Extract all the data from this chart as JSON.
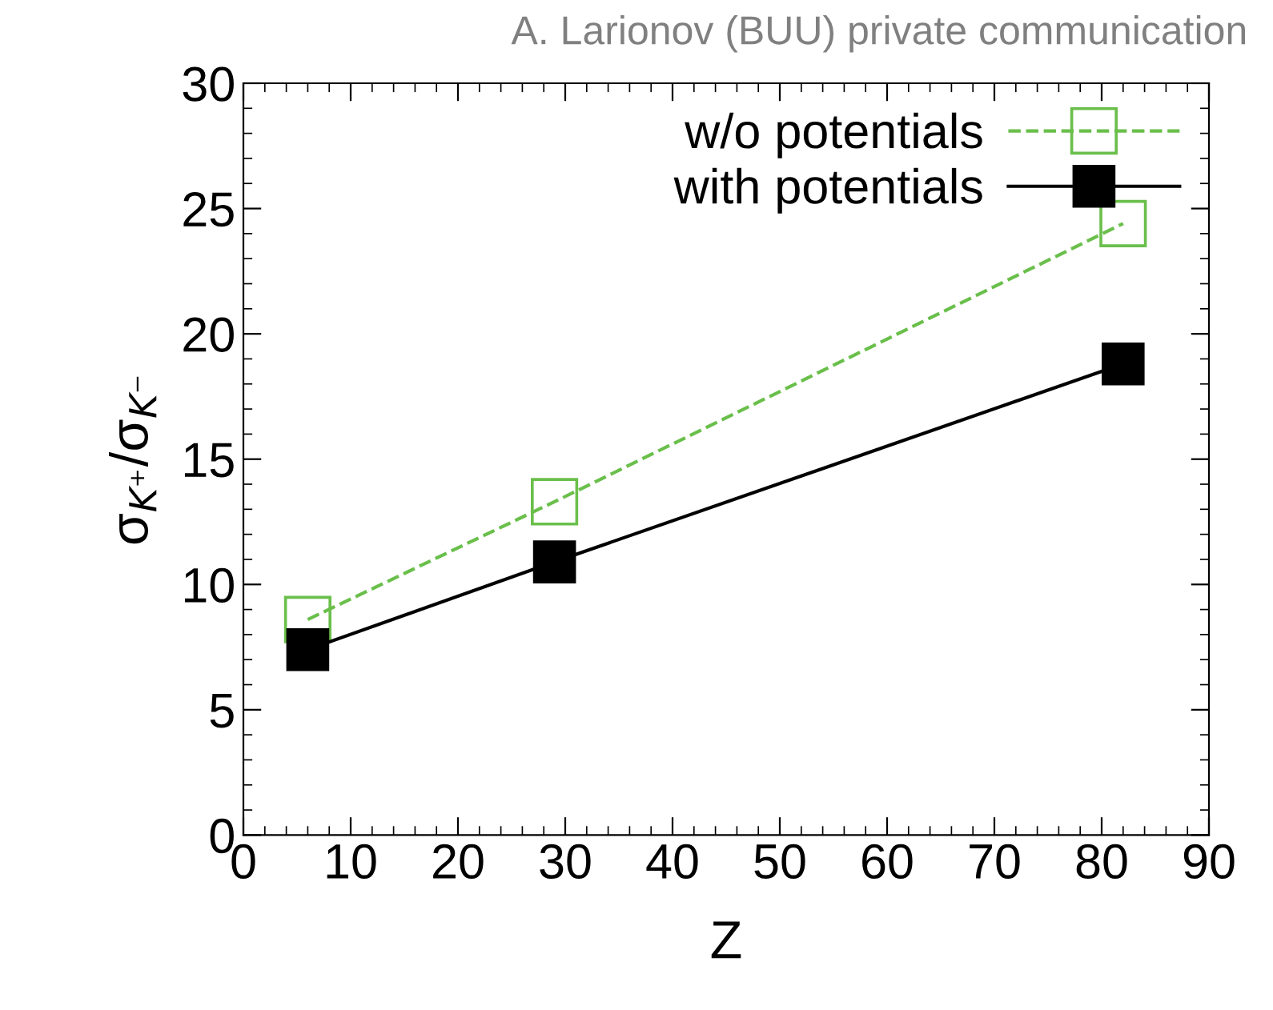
{
  "chart_data": {
    "type": "line",
    "xlabel": "Z",
    "ylabel": "σ$_{K⁺}$/σ$_{K⁻}$",
    "annotations": [
      "A. Larionov (BUU) private communication"
    ],
    "x": [
      6,
      29,
      82
    ],
    "series": [
      {
        "name": "w/o potentials",
        "color": "#6abf4b",
        "values": [
          8.6,
          13.3,
          24.4
        ],
        "line_style": "dashed",
        "marker": "square"
      },
      {
        "name": "with potentials",
        "color": "#000000",
        "values": [
          7.4,
          10.9,
          18.8
        ],
        "line_style": "solid",
        "marker": "square"
      }
    ],
    "xlim": [
      0,
      90
    ],
    "xticks": [
      0,
      10,
      20,
      30,
      40,
      50,
      60,
      70,
      80,
      90
    ],
    "ylim": [
      0,
      30
    ],
    "yticks": [
      0,
      5,
      10,
      15,
      20,
      25,
      30
    ],
    "grid": false,
    "legend": "top right"
  }
}
